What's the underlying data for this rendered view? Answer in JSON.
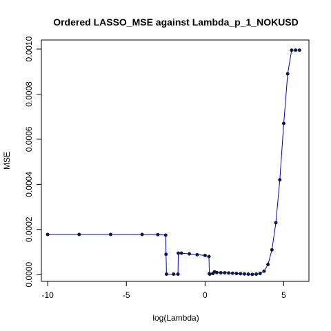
{
  "chart_data": {
    "type": "line",
    "title": "Ordered LASSO_MSE against Lambda_p_1_NOKUSD",
    "xlabel": "log(Lambda)",
    "ylabel": "MSE",
    "xlim": [
      -10.4,
      6.6
    ],
    "ylim": [
      -3e-05,
      0.00104
    ],
    "x_ticks": [
      -10,
      -5,
      0,
      5
    ],
    "x_tick_labels": [
      "-10",
      "-5",
      "0",
      "5"
    ],
    "y_ticks": [
      0.0,
      0.0002,
      0.0004,
      0.0006,
      0.0008,
      0.001
    ],
    "y_tick_labels": [
      "0.0000",
      "0.0002",
      "0.0004",
      "0.0006",
      "0.0008",
      "0.0010"
    ],
    "grid": false,
    "line_color": "#0000cc",
    "point_color": "#0b1a4a",
    "series": [
      {
        "x": [
          -10.0,
          -8.0,
          -6.0,
          -4.0,
          -3.0,
          -2.5,
          -2.48,
          -2.45,
          -2.0,
          -1.72,
          -1.7,
          -1.5,
          -1.0,
          -0.5,
          0.0,
          0.25,
          0.27,
          0.3,
          0.5,
          0.6,
          0.75,
          1.0,
          1.25,
          1.5,
          1.75,
          2.0,
          2.25,
          2.5,
          2.75,
          3.0,
          3.25,
          3.5,
          3.75,
          4.0,
          4.25,
          4.5,
          4.75,
          5.0,
          5.25,
          5.5,
          5.75,
          6.0
        ],
        "y": [
          0.000178,
          0.000178,
          0.000178,
          0.000178,
          0.000177,
          0.000175,
          9e-05,
          2e-06,
          2e-06,
          2e-06,
          9.5e-05,
          9.5e-05,
          9.2e-05,
          8.8e-05,
          8.5e-05,
          8e-05,
          4e-06,
          2e-06,
          5e-06,
          1.2e-05,
          9e-06,
          8e-06,
          8e-06,
          7e-06,
          6e-06,
          5e-06,
          4e-06,
          3e-06,
          2e-06,
          1e-06,
          2e-06,
          5e-06,
          1.5e-05,
          4.5e-05,
          0.00011,
          0.00023,
          0.00042,
          0.00067,
          0.00089,
          0.000995,
          0.000995,
          0.000995
        ]
      }
    ]
  }
}
